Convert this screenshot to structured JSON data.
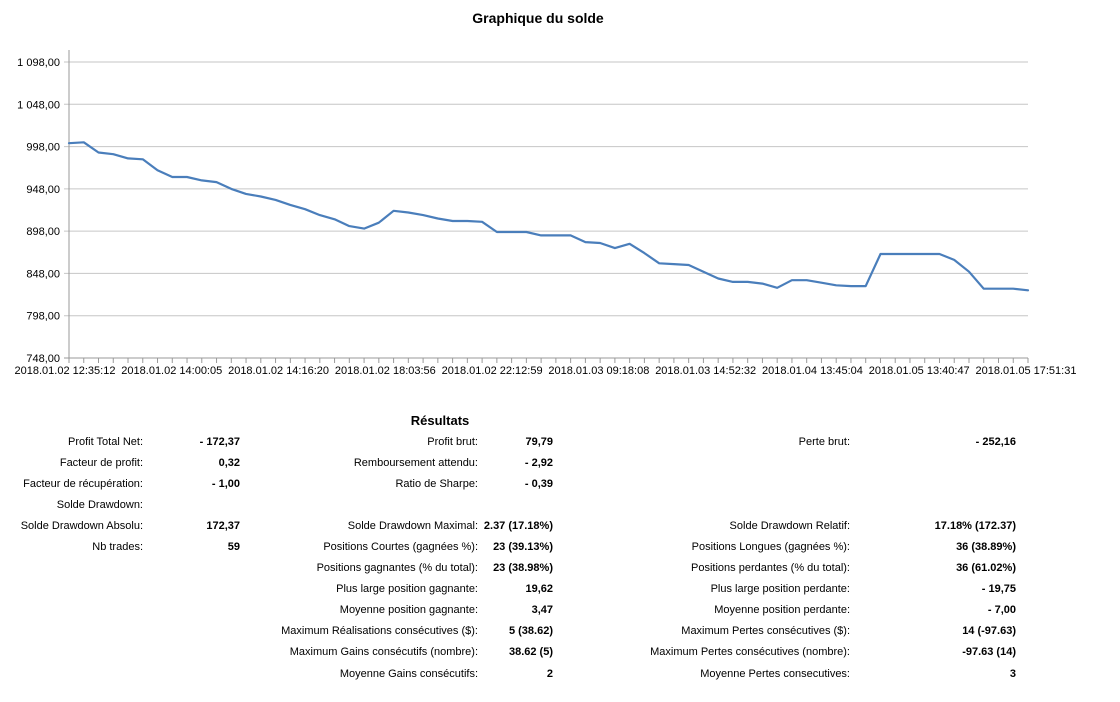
{
  "chart": {
    "title": "Graphique du solde"
  },
  "chart_data": {
    "type": "line",
    "title": "Graphique du solde",
    "xlabel": "",
    "ylabel": "",
    "ylim": [
      748,
      1098
    ],
    "grid": "horizontal",
    "legend": "none",
    "y_ticks": [
      1098,
      1048,
      998,
      948,
      898,
      848,
      798,
      748
    ],
    "y_tick_labels": [
      "1 098,00",
      "1 048,00",
      "998,00",
      "948,00",
      "898,00",
      "848,00",
      "798,00",
      "748,00"
    ],
    "x_tick_labels": [
      "2018.01.02 12:35:12",
      "2018.01.02 14:00:05",
      "2018.01.02 14:16:20",
      "2018.01.02 18:03:56",
      "2018.01.02 22:12:59",
      "2018.01.03 09:18:08",
      "2018.01.03 14:52:32",
      "2018.01.04 13:45:04",
      "2018.01.05 13:40:47",
      "2018.01.05 17:51:31"
    ],
    "series": [
      {
        "name": "Solde",
        "color": "#4a7ebb",
        "values": [
          1002,
          1003,
          991,
          989,
          984,
          983,
          970,
          962,
          962,
          958,
          956,
          948,
          942,
          939,
          935,
          929,
          924,
          917,
          912,
          904,
          901,
          908,
          922,
          920,
          917,
          913,
          910,
          910,
          909,
          897,
          897,
          897,
          893,
          893,
          893,
          885,
          884,
          878,
          883,
          872,
          860,
          859,
          858,
          850,
          842,
          838,
          838,
          836,
          831,
          840,
          840,
          837,
          834,
          833,
          833,
          871,
          871,
          871,
          871,
          871,
          864,
          850,
          830,
          830,
          830,
          828
        ]
      }
    ]
  },
  "results": {
    "title": "Résultats",
    "columns": [
      {
        "rows": [
          [
            "Profit Total Net:",
            "- 172,37"
          ],
          [
            "Facteur de profit:",
            "0,32"
          ],
          [
            "Facteur de récupération:",
            "- 1,00"
          ],
          [
            "Solde Drawdown:",
            ""
          ],
          [
            "Solde Drawdown Absolu:",
            "172,37"
          ],
          [
            "Nb trades:",
            "59"
          ]
        ]
      },
      {
        "rows": [
          [
            "Profit brut:",
            "79,79"
          ],
          [
            "Remboursement attendu:",
            "- 2,92"
          ],
          [
            "Ratio de Sharpe:",
            "- 0,39"
          ],
          [
            "",
            ""
          ],
          [
            "Solde Drawdown Maximal:",
            "2.37 (17.18%)"
          ],
          [
            "Positions Courtes (gagnées %):",
            "23 (39.13%)"
          ],
          [
            "Positions gagnantes (% du total):",
            "23 (38.98%)"
          ],
          [
            "Plus large position gagnante:",
            "19,62"
          ],
          [
            "Moyenne position gagnante:",
            "3,47"
          ],
          [
            "Maximum Réalisations consécutives ($):",
            "5 (38.62)"
          ],
          [
            "Maximum Gains consécutifs (nombre):",
            "38.62 (5)"
          ],
          [
            "Moyenne Gains consécutifs:",
            "2"
          ]
        ]
      },
      {
        "rows": [
          [
            "Perte brut:",
            "- 252,16"
          ],
          [
            "",
            ""
          ],
          [
            "",
            ""
          ],
          [
            "",
            ""
          ],
          [
            "Solde Drawdown Relatif:",
            "17.18% (172.37)"
          ],
          [
            "Positions Longues (gagnées %):",
            "36 (38.89%)"
          ],
          [
            "Positions perdantes (% du total):",
            "36 (61.02%)"
          ],
          [
            "Plus large position perdante:",
            "- 19,75"
          ],
          [
            "Moyenne position perdante:",
            "- 7,00"
          ],
          [
            "Maximum Pertes consécutives ($):",
            "14 (-97.63)"
          ],
          [
            "Maximum Pertes consécutives (nombre):",
            "-97.63 (14)"
          ],
          [
            "Moyenne Pertes consecutives:",
            "3"
          ]
        ]
      }
    ]
  },
  "colors": {
    "line": "#4a7ebb",
    "grid": "#c6c6c6",
    "axis": "#999999",
    "text": "#000000"
  }
}
